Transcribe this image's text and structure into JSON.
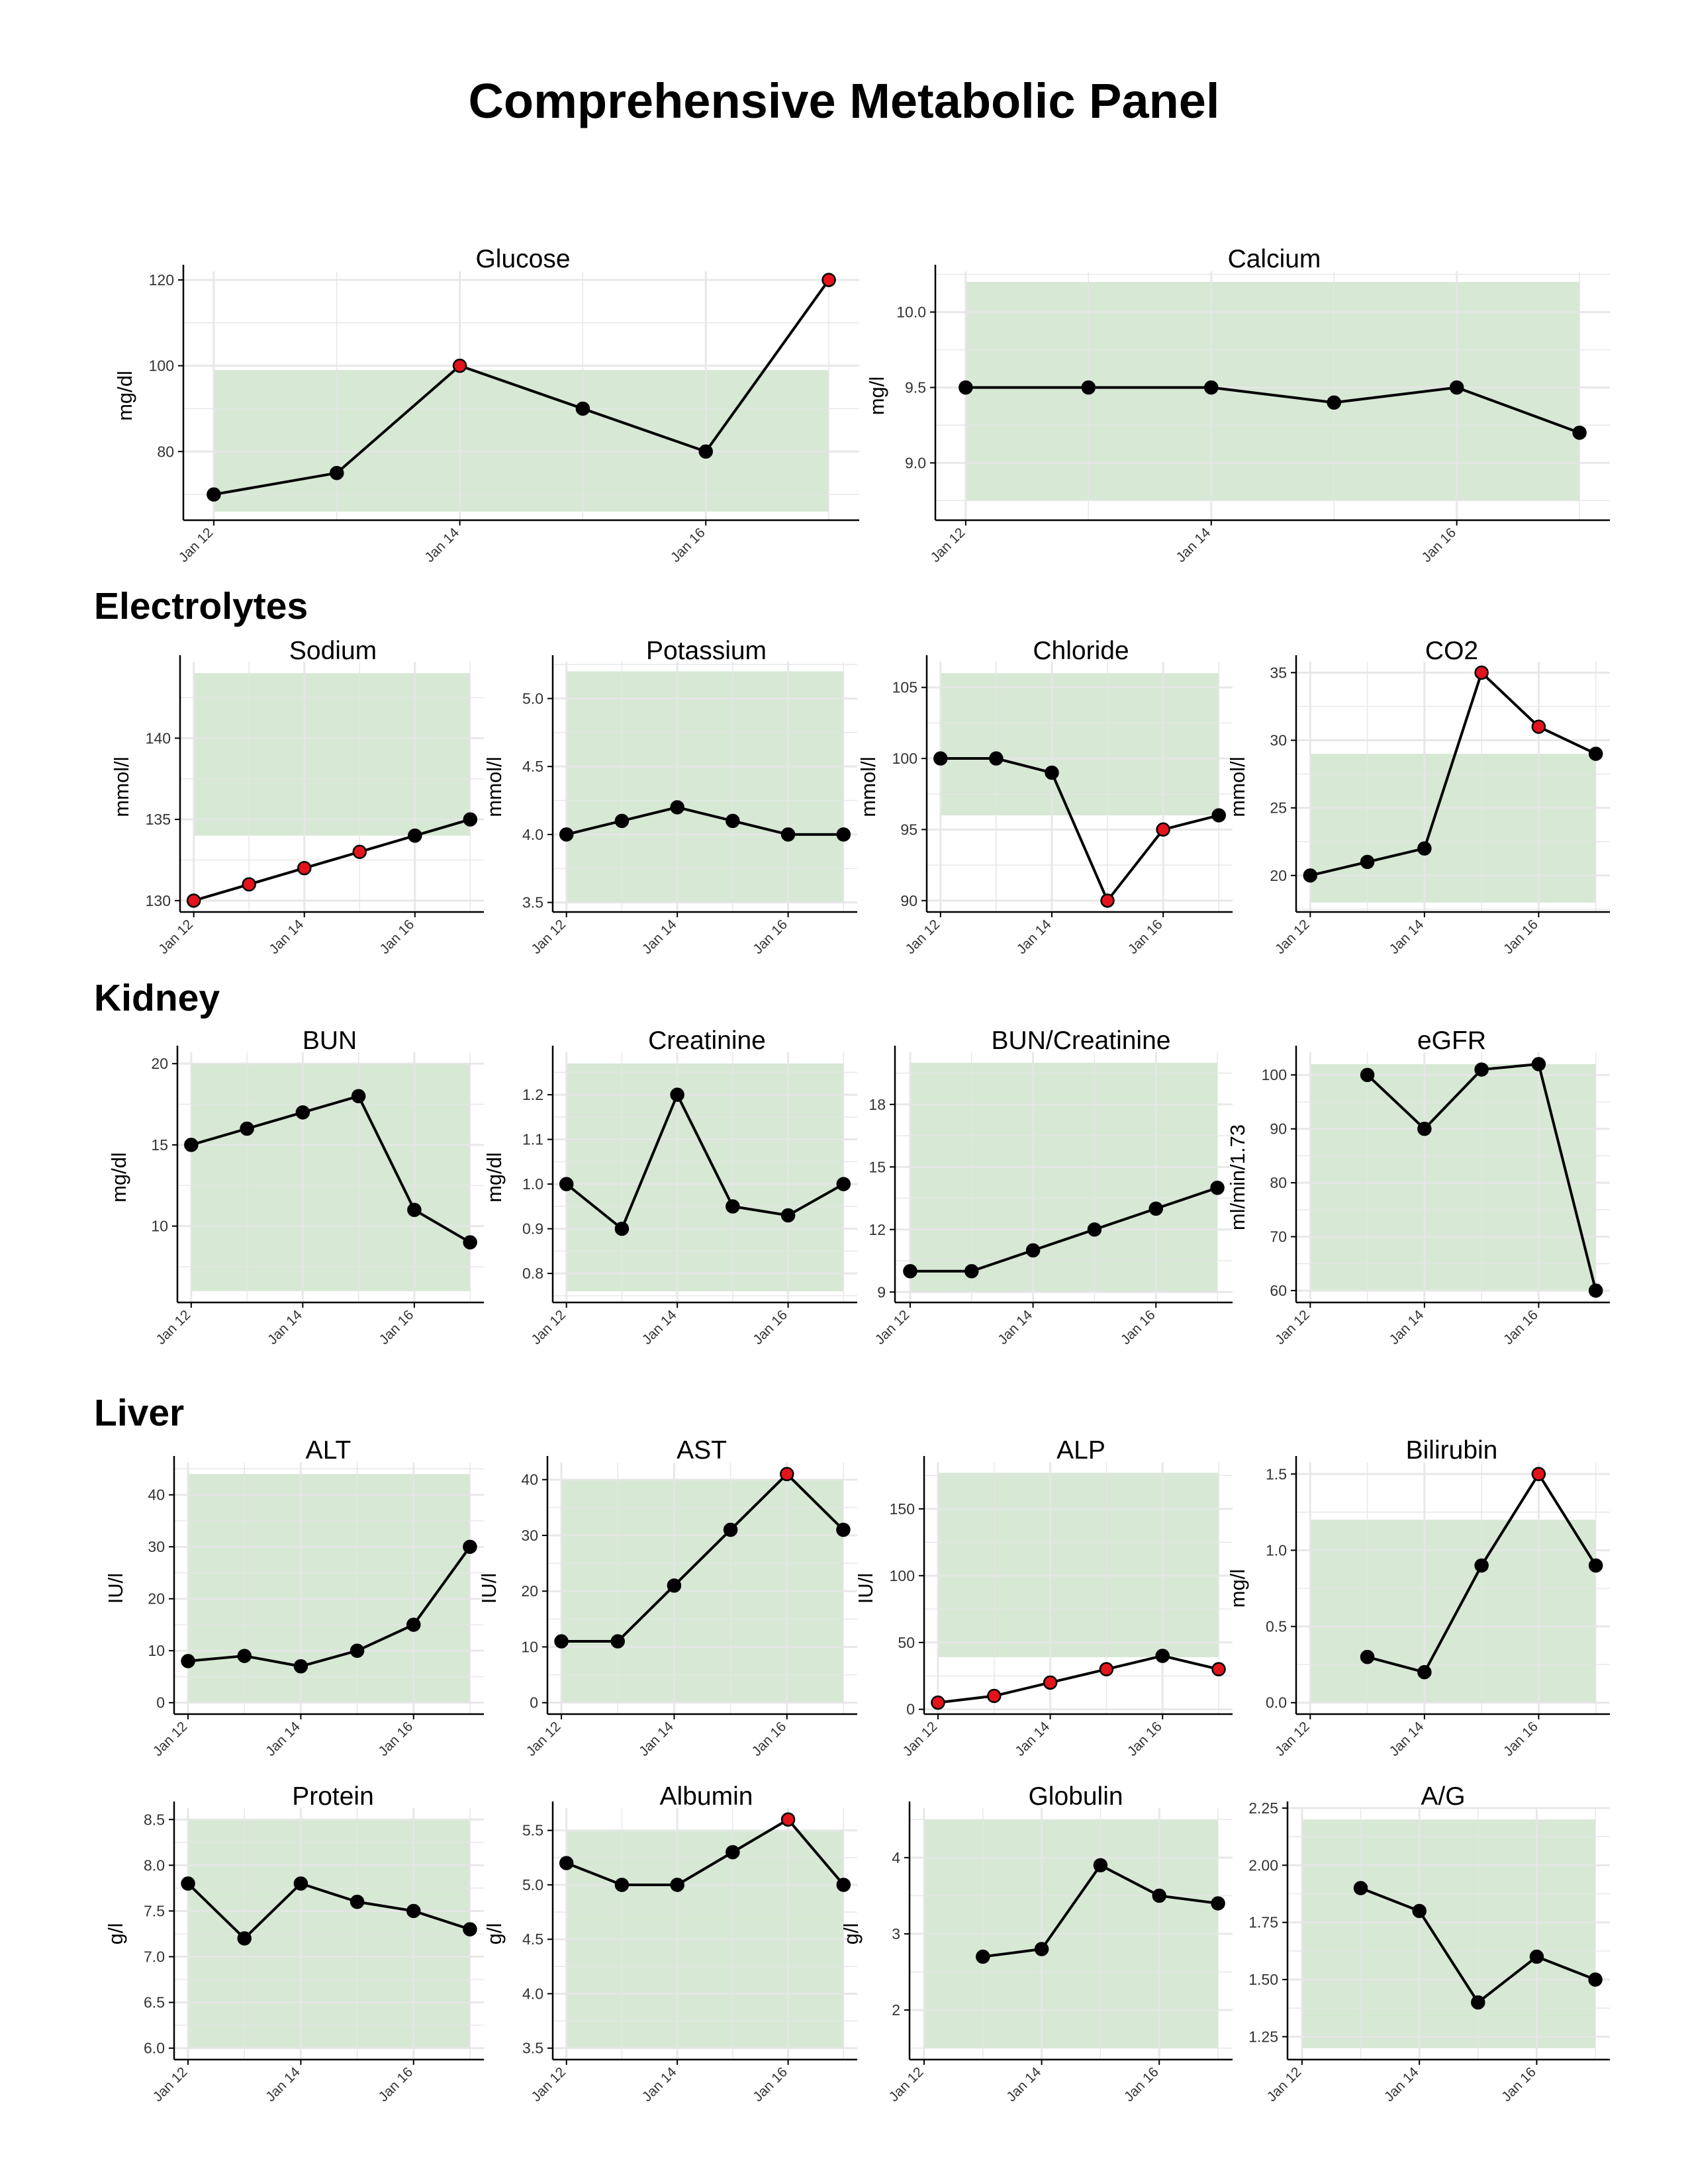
{
  "title": "Comprehensive Metabolic Panel",
  "sections": {
    "electrolytes": "Electrolytes",
    "kidney": "Kidney",
    "liver": "Liver"
  },
  "colors": {
    "reference_band": "#d7e8d5",
    "line": "#000000",
    "normal_point": "#000000",
    "abnormal_point": "#e3141c",
    "grid": "#e6e6e6"
  },
  "chart_data": [
    {
      "id": "glucose",
      "type": "line",
      "title": "Glucose",
      "ylabel": "mg/dl",
      "categories": [
        "Jan 12",
        "Jan 13",
        "Jan 14",
        "Jan 15",
        "Jan 16",
        "Jan 17"
      ],
      "xticks": [
        "Jan 12",
        "Jan 14",
        "Jan 16"
      ],
      "values": [
        70,
        75,
        100,
        90,
        80,
        120
      ],
      "abnormal": [
        false,
        false,
        true,
        false,
        false,
        true
      ],
      "reference_range": [
        66,
        99
      ],
      "ylim": [
        64,
        122
      ],
      "yticks": [
        "80",
        "100",
        "120"
      ]
    },
    {
      "id": "calcium",
      "type": "line",
      "title": "Calcium",
      "ylabel": "mg/l",
      "categories": [
        "Jan 12",
        "Jan 13",
        "Jan 14",
        "Jan 15",
        "Jan 16",
        "Jan 17"
      ],
      "xticks": [
        "Jan 12",
        "Jan 14",
        "Jan 16"
      ],
      "values": [
        9.5,
        9.5,
        9.5,
        9.4,
        9.5,
        9.2
      ],
      "abnormal": [
        false,
        false,
        false,
        false,
        false,
        false
      ],
      "reference_range": [
        8.75,
        10.2
      ],
      "ylim": [
        8.62,
        10.27
      ],
      "yticks": [
        "9.0",
        "9.5",
        "10.0"
      ]
    },
    {
      "id": "sodium",
      "type": "line",
      "title": "Sodium",
      "ylabel": "mmol/l",
      "categories": [
        "Jan 12",
        "Jan 13",
        "Jan 14",
        "Jan 15",
        "Jan 16",
        "Jan 17"
      ],
      "xticks": [
        "Jan 12",
        "Jan 14",
        "Jan 16"
      ],
      "values": [
        130,
        131,
        132,
        133,
        134,
        135
      ],
      "abnormal": [
        true,
        true,
        true,
        true,
        false,
        false
      ],
      "reference_range": [
        134,
        144
      ],
      "ylim": [
        129.3,
        144.7
      ],
      "yticks": [
        "130",
        "135",
        "140"
      ]
    },
    {
      "id": "potassium",
      "type": "line",
      "title": "Potassium",
      "ylabel": "mmol/l",
      "categories": [
        "Jan 12",
        "Jan 13",
        "Jan 14",
        "Jan 15",
        "Jan 16",
        "Jan 17"
      ],
      "xticks": [
        "Jan 12",
        "Jan 14",
        "Jan 16"
      ],
      "values": [
        4.0,
        4.1,
        4.2,
        4.1,
        4.0,
        4.0
      ],
      "abnormal": [
        false,
        false,
        false,
        false,
        false,
        false
      ],
      "reference_range": [
        3.5,
        5.2
      ],
      "ylim": [
        3.43,
        5.27
      ],
      "yticks": [
        "3.5",
        "4.0",
        "4.5",
        "5.0"
      ]
    },
    {
      "id": "chloride",
      "type": "line",
      "title": "Chloride",
      "ylabel": "mmol/l",
      "categories": [
        "Jan 12",
        "Jan 13",
        "Jan 14",
        "Jan 15",
        "Jan 16",
        "Jan 17"
      ],
      "xticks": [
        "Jan 12",
        "Jan 14",
        "Jan 16"
      ],
      "values": [
        100,
        100,
        99,
        90,
        95,
        96
      ],
      "abnormal": [
        false,
        false,
        false,
        true,
        true,
        false
      ],
      "reference_range": [
        96,
        106
      ],
      "ylim": [
        89.2,
        106.8
      ],
      "yticks": [
        "90",
        "95",
        "100",
        "105"
      ]
    },
    {
      "id": "co2",
      "type": "line",
      "title": "CO2",
      "ylabel": "mmol/l",
      "categories": [
        "Jan 12",
        "Jan 13",
        "Jan 14",
        "Jan 15",
        "Jan 16",
        "Jan 17"
      ],
      "xticks": [
        "Jan 12",
        "Jan 14",
        "Jan 16"
      ],
      "values": [
        20,
        21,
        22,
        35,
        31,
        29
      ],
      "abnormal": [
        false,
        false,
        false,
        true,
        true,
        false
      ],
      "reference_range": [
        18,
        29
      ],
      "ylim": [
        17.3,
        35.8
      ],
      "yticks": [
        "20",
        "25",
        "30",
        "35"
      ]
    },
    {
      "id": "bun",
      "type": "line",
      "title": "BUN",
      "ylabel": "mg/dl",
      "categories": [
        "Jan 12",
        "Jan 13",
        "Jan 14",
        "Jan 15",
        "Jan 16",
        "Jan 17"
      ],
      "xticks": [
        "Jan 12",
        "Jan 14",
        "Jan 16"
      ],
      "values": [
        15,
        16,
        17,
        18,
        11,
        9
      ],
      "abnormal": [
        false,
        false,
        false,
        false,
        false,
        false
      ],
      "reference_range": [
        6,
        20
      ],
      "ylim": [
        5.3,
        20.7
      ],
      "yticks": [
        "10",
        "15",
        "20"
      ]
    },
    {
      "id": "creatinine",
      "type": "line",
      "title": "Creatinine",
      "ylabel": "mg/dl",
      "categories": [
        "Jan 12",
        "Jan 13",
        "Jan 14",
        "Jan 15",
        "Jan 16",
        "Jan 17"
      ],
      "xticks": [
        "Jan 12",
        "Jan 14",
        "Jan 16"
      ],
      "values": [
        1.0,
        0.9,
        1.2,
        0.95,
        0.93,
        1.0
      ],
      "abnormal": [
        false,
        false,
        false,
        false,
        false,
        false
      ],
      "reference_range": [
        0.76,
        1.27
      ],
      "ylim": [
        0.735,
        1.295
      ],
      "yticks": [
        "0.8",
        "0.9",
        "1.0",
        "1.1",
        "1.2"
      ]
    },
    {
      "id": "bun_creatinine",
      "type": "line",
      "title": "BUN/Creatinine",
      "ylabel": "",
      "categories": [
        "Jan 12",
        "Jan 13",
        "Jan 14",
        "Jan 15",
        "Jan 16",
        "Jan 17"
      ],
      "xticks": [
        "Jan 12",
        "Jan 14",
        "Jan 16"
      ],
      "values": [
        10,
        10,
        11,
        12,
        13,
        14
      ],
      "abnormal": [
        false,
        false,
        false,
        false,
        false,
        false
      ],
      "reference_range": [
        9,
        20
      ],
      "ylim": [
        8.5,
        20.5
      ],
      "yticks": [
        "9",
        "12",
        "15",
        "18"
      ]
    },
    {
      "id": "egfr",
      "type": "line",
      "title": "eGFR",
      "ylabel": "ml/min/1.73",
      "categories": [
        "Jan 12",
        "Jan 13",
        "Jan 14",
        "Jan 15",
        "Jan 16",
        "Jan 17"
      ],
      "xticks": [
        "Jan 12",
        "Jan 14",
        "Jan 16"
      ],
      "values": [
        null,
        100,
        90,
        101,
        102,
        60
      ],
      "abnormal": [
        false,
        false,
        false,
        false,
        false,
        false
      ],
      "reference_range": [
        60,
        102
      ],
      "ylim": [
        57.8,
        104.2
      ],
      "yticks": [
        "60",
        "70",
        "80",
        "90",
        "100"
      ]
    },
    {
      "id": "alt",
      "type": "line",
      "title": "ALT",
      "ylabel": "IU/l",
      "categories": [
        "Jan 12",
        "Jan 13",
        "Jan 14",
        "Jan 15",
        "Jan 16",
        "Jan 17"
      ],
      "xticks": [
        "Jan 12",
        "Jan 14",
        "Jan 16"
      ],
      "values": [
        8,
        9,
        7,
        10,
        15,
        30
      ],
      "abnormal": [
        false,
        false,
        false,
        false,
        false,
        false
      ],
      "reference_range": [
        0,
        44
      ],
      "ylim": [
        -2.2,
        46.2
      ],
      "yticks": [
        "0",
        "10",
        "20",
        "30",
        "40"
      ]
    },
    {
      "id": "ast",
      "type": "line",
      "title": "AST",
      "ylabel": "IU/l",
      "categories": [
        "Jan 12",
        "Jan 13",
        "Jan 14",
        "Jan 15",
        "Jan 16",
        "Jan 17"
      ],
      "xticks": [
        "Jan 12",
        "Jan 14",
        "Jan 16"
      ],
      "values": [
        11,
        11,
        21,
        31,
        41,
        31
      ],
      "abnormal": [
        false,
        false,
        false,
        false,
        true,
        false
      ],
      "reference_range": [
        0,
        40
      ],
      "ylim": [
        -2.05,
        43.05
      ],
      "yticks": [
        "0",
        "10",
        "20",
        "30",
        "40"
      ]
    },
    {
      "id": "alp",
      "type": "line",
      "title": "ALP",
      "ylabel": "IU/l",
      "categories": [
        "Jan 12",
        "Jan 13",
        "Jan 14",
        "Jan 15",
        "Jan 16",
        "Jan 17"
      ],
      "xticks": [
        "Jan 12",
        "Jan 14",
        "Jan 16"
      ],
      "values": [
        5,
        10,
        20,
        30,
        40,
        30
      ],
      "abnormal": [
        true,
        true,
        true,
        true,
        false,
        true
      ],
      "reference_range": [
        39,
        177
      ],
      "ylim": [
        -3.6,
        184.6
      ],
      "yticks": [
        "0",
        "50",
        "100",
        "150"
      ]
    },
    {
      "id": "bilirubin",
      "type": "line",
      "title": "Bilirubin",
      "ylabel": "mg/l",
      "categories": [
        "Jan 12",
        "Jan 13",
        "Jan 14",
        "Jan 15",
        "Jan 16",
        "Jan 17"
      ],
      "xticks": [
        "Jan 12",
        "Jan 14",
        "Jan 16"
      ],
      "values": [
        null,
        0.3,
        0.2,
        0.9,
        1.5,
        0.9
      ],
      "abnormal": [
        false,
        false,
        false,
        false,
        true,
        false
      ],
      "reference_range": [
        0,
        1.2
      ],
      "ylim": [
        -0.075,
        1.575
      ],
      "yticks": [
        "0.0",
        "0.5",
        "1.0",
        "1.5"
      ]
    },
    {
      "id": "protein",
      "type": "line",
      "title": "Protein",
      "ylabel": "g/l",
      "categories": [
        "Jan 12",
        "Jan 13",
        "Jan 14",
        "Jan 15",
        "Jan 16",
        "Jan 17"
      ],
      "xticks": [
        "Jan 12",
        "Jan 14",
        "Jan 16"
      ],
      "values": [
        7.8,
        7.2,
        7.8,
        7.6,
        7.5,
        7.3
      ],
      "abnormal": [
        false,
        false,
        false,
        false,
        false,
        false
      ],
      "reference_range": [
        6.0,
        8.5
      ],
      "ylim": [
        5.875,
        8.625
      ],
      "yticks": [
        "6.0",
        "6.5",
        "7.0",
        "7.5",
        "8.0",
        "8.5"
      ]
    },
    {
      "id": "albumin",
      "type": "line",
      "title": "Albumin",
      "ylabel": "g/l",
      "categories": [
        "Jan 12",
        "Jan 13",
        "Jan 14",
        "Jan 15",
        "Jan 16",
        "Jan 17"
      ],
      "xticks": [
        "Jan 12",
        "Jan 14",
        "Jan 16"
      ],
      "values": [
        5.2,
        5.0,
        5.0,
        5.3,
        5.6,
        5.0
      ],
      "abnormal": [
        false,
        false,
        false,
        false,
        true,
        false
      ],
      "reference_range": [
        3.5,
        5.5
      ],
      "ylim": [
        3.395,
        5.705
      ],
      "yticks": [
        "3.5",
        "4.0",
        "4.5",
        "5.0",
        "5.5"
      ]
    },
    {
      "id": "globulin",
      "type": "line",
      "title": "Globulin",
      "ylabel": "g/l",
      "categories": [
        "Jan 12",
        "Jan 13",
        "Jan 14",
        "Jan 15",
        "Jan 16",
        "Jan 17"
      ],
      "xticks": [
        "Jan 12",
        "Jan 14",
        "Jan 16"
      ],
      "values": [
        null,
        2.7,
        2.8,
        3.9,
        3.5,
        3.4
      ],
      "abnormal": [
        false,
        false,
        false,
        false,
        false,
        false
      ],
      "reference_range": [
        1.5,
        4.5
      ],
      "ylim": [
        1.35,
        4.65
      ],
      "yticks": [
        "2",
        "3",
        "4"
      ]
    },
    {
      "id": "ag_ratio",
      "type": "line",
      "title": "A/G",
      "ylabel": "",
      "categories": [
        "Jan 12",
        "Jan 13",
        "Jan 14",
        "Jan 15",
        "Jan 16",
        "Jan 17"
      ],
      "xticks": [
        "Jan 12",
        "Jan 14",
        "Jan 16"
      ],
      "values": [
        null,
        1.9,
        1.8,
        1.4,
        1.6,
        1.5
      ],
      "abnormal": [
        false,
        false,
        false,
        false,
        false,
        false
      ],
      "reference_range": [
        1.2,
        2.2
      ],
      "ylim": [
        1.15,
        2.25
      ],
      "yticks": [
        "1.25",
        "1.50",
        "1.75",
        "2.00",
        "2.25"
      ]
    }
  ]
}
